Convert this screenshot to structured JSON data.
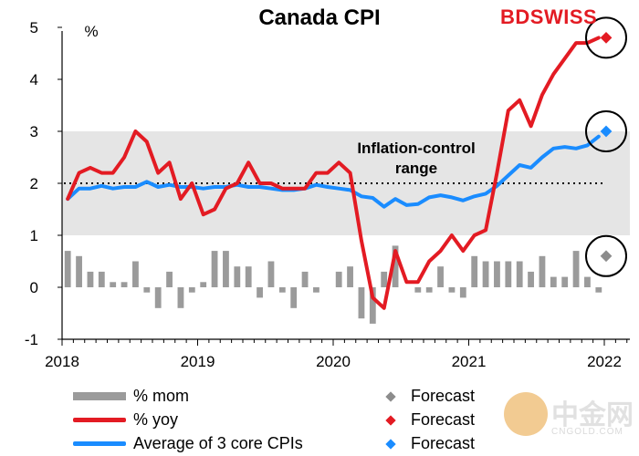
{
  "title": "Canada CPI",
  "brand": {
    "left": "BD",
    "right": "SWISS"
  },
  "watermark": {
    "name": "中金网",
    "url": "CNGOLD.COM",
    "tagline": "中 文 财 经 第 一 新 媒 体"
  },
  "colors": {
    "bars": "#9b9b9b",
    "yoy": "#e31b23",
    "core": "#1a8cff",
    "band": "#e5e5e5",
    "forecast_mom": "#8c8c8c"
  },
  "chart_data": {
    "type": "line",
    "title": "Canada CPI",
    "yunit": "%",
    "ylim": [
      -1,
      5
    ],
    "yticks": [
      -1,
      0,
      1,
      2,
      3,
      4,
      5
    ],
    "xticks": [
      "2018",
      "2019",
      "2020",
      "2021",
      "2022"
    ],
    "band": {
      "from": 1,
      "to": 3,
      "label": [
        "Inflation-control",
        "range"
      ]
    },
    "target_line": 2,
    "months": [
      "2018-01",
      "2018-02",
      "2018-03",
      "2018-04",
      "2018-05",
      "2018-06",
      "2018-07",
      "2018-08",
      "2018-09",
      "2018-10",
      "2018-11",
      "2018-12",
      "2019-01",
      "2019-02",
      "2019-03",
      "2019-04",
      "2019-05",
      "2019-06",
      "2019-07",
      "2019-08",
      "2019-09",
      "2019-10",
      "2019-11",
      "2019-12",
      "2020-01",
      "2020-02",
      "2020-03",
      "2020-04",
      "2020-05",
      "2020-06",
      "2020-07",
      "2020-08",
      "2020-09",
      "2020-10",
      "2020-11",
      "2020-12",
      "2021-01",
      "2021-02",
      "2021-03",
      "2021-04",
      "2021-05",
      "2021-06",
      "2021-07",
      "2021-08",
      "2021-09",
      "2021-10",
      "2021-11",
      "2021-12"
    ],
    "series": [
      {
        "name": "% mom",
        "kind": "bar",
        "values": [
          0.7,
          0.6,
          0.3,
          0.3,
          0.1,
          0.1,
          0.5,
          -0.1,
          -0.4,
          0.3,
          -0.4,
          -0.1,
          0.1,
          0.7,
          0.7,
          0.4,
          0.4,
          -0.2,
          0.5,
          -0.1,
          -0.4,
          0.3,
          -0.1,
          0.0,
          0.3,
          0.4,
          -0.6,
          -0.7,
          0.3,
          0.8,
          0.0,
          -0.1,
          -0.1,
          0.4,
          -0.1,
          -0.2,
          0.6,
          0.5,
          0.5,
          0.5,
          0.5,
          0.3,
          0.6,
          0.2,
          0.2,
          0.7,
          0.2,
          -0.1
        ],
        "forecast": 0.6
      },
      {
        "name": "% yoy",
        "kind": "line",
        "values": [
          1.7,
          2.2,
          2.3,
          2.2,
          2.2,
          2.5,
          3.0,
          2.8,
          2.2,
          2.4,
          1.7,
          2.0,
          1.4,
          1.5,
          1.9,
          2.0,
          2.4,
          2.0,
          2.0,
          1.9,
          1.9,
          1.9,
          2.2,
          2.2,
          2.4,
          2.2,
          0.9,
          -0.2,
          -0.4,
          0.7,
          0.1,
          0.1,
          0.5,
          0.7,
          1.0,
          0.7,
          1.0,
          1.1,
          2.2,
          3.4,
          3.6,
          3.1,
          3.7,
          4.1,
          4.4,
          4.7,
          4.7,
          4.8
        ],
        "forecast": 4.8
      },
      {
        "name": "Average of 3 core CPIs",
        "kind": "line",
        "values": [
          1.7,
          1.9,
          1.9,
          1.95,
          1.9,
          1.93,
          1.93,
          2.03,
          1.93,
          1.97,
          1.93,
          1.93,
          1.9,
          1.93,
          1.93,
          1.97,
          1.93,
          1.93,
          1.9,
          1.87,
          1.87,
          1.9,
          1.97,
          1.93,
          1.9,
          1.87,
          1.75,
          1.72,
          1.55,
          1.7,
          1.58,
          1.6,
          1.73,
          1.77,
          1.73,
          1.67,
          1.75,
          1.8,
          1.95,
          2.15,
          2.35,
          2.3,
          2.5,
          2.67,
          2.7,
          2.67,
          2.73,
          2.9
        ],
        "forecast": 3.0
      }
    ],
    "legend": [
      {
        "label": "% mom",
        "marker_label": "Forecast"
      },
      {
        "label": "% yoy",
        "marker_label": "Forecast"
      },
      {
        "label": "Average of 3 core CPIs",
        "marker_label": "Forecast"
      }
    ]
  }
}
